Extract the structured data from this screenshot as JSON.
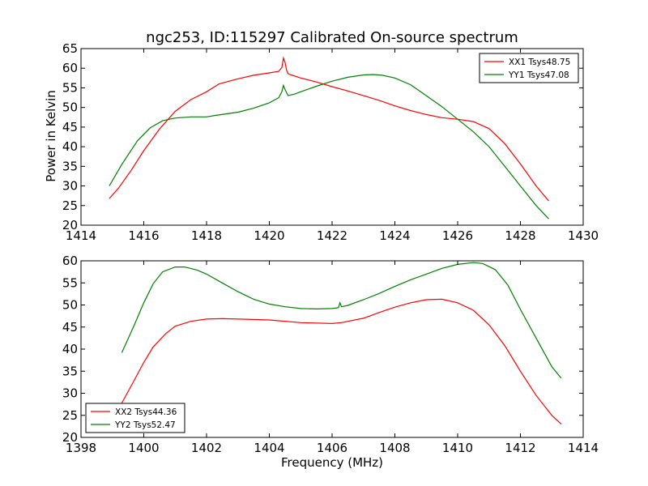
{
  "figure": {
    "title": "ngc253, ID:115297 Calibrated On-source spectrum",
    "ylabel": "Power in Kelvin",
    "xlabel": "Frequency (MHz)"
  },
  "colors": {
    "red": "#ff0000",
    "green": "#008000"
  },
  "chart_data": [
    {
      "type": "line",
      "xlim": [
        1414,
        1430
      ],
      "ylim": [
        20,
        65
      ],
      "xticks": [
        1414,
        1416,
        1418,
        1420,
        1422,
        1424,
        1426,
        1428,
        1430
      ],
      "yticks": [
        20,
        25,
        30,
        35,
        40,
        45,
        50,
        55,
        60,
        65
      ],
      "legend_position": "top-right",
      "series": [
        {
          "name": "XX1 Tsys48.75",
          "color": "#ff0000",
          "x": [
            1414.9,
            1415.2,
            1415.6,
            1416.0,
            1416.5,
            1417.0,
            1417.5,
            1418.0,
            1418.2,
            1418.4,
            1419.0,
            1419.5,
            1420.0,
            1420.3,
            1420.4,
            1420.45,
            1420.5,
            1420.55,
            1420.6,
            1420.7,
            1421.0,
            1421.5,
            1422.0,
            1422.5,
            1423.0,
            1423.5,
            1424.0,
            1424.5,
            1425.0,
            1425.5,
            1426.0,
            1426.5,
            1427.0,
            1427.5,
            1428.0,
            1428.5,
            1428.9
          ],
          "y": [
            26.8,
            29.5,
            34.0,
            39.0,
            44.5,
            49.0,
            52.0,
            54.0,
            55.0,
            56.0,
            57.3,
            58.2,
            58.8,
            59.2,
            60.2,
            62.6,
            61.5,
            59.5,
            58.6,
            58.3,
            57.5,
            56.5,
            55.3,
            54.2,
            53.0,
            51.8,
            50.4,
            49.2,
            48.2,
            47.4,
            47.0,
            46.4,
            44.6,
            40.8,
            35.6,
            30.0,
            26.2
          ]
        },
        {
          "name": "YY1 Tsys47.08",
          "color": "#008000",
          "x": [
            1414.9,
            1415.3,
            1415.8,
            1416.2,
            1416.6,
            1417.0,
            1417.5,
            1418.0,
            1418.3,
            1419.0,
            1419.5,
            1420.0,
            1420.3,
            1420.4,
            1420.45,
            1420.5,
            1420.6,
            1420.8,
            1421.0,
            1421.5,
            1422.0,
            1422.5,
            1423.0,
            1423.3,
            1423.6,
            1424.0,
            1424.5,
            1425.0,
            1425.5,
            1426.0,
            1426.5,
            1427.0,
            1427.5,
            1428.0,
            1428.5,
            1428.9
          ],
          "y": [
            30.0,
            35.5,
            41.5,
            44.8,
            46.6,
            47.3,
            47.6,
            47.6,
            48.0,
            48.8,
            49.8,
            51.2,
            52.5,
            54.0,
            55.6,
            54.6,
            53.0,
            53.4,
            54.0,
            55.4,
            56.7,
            57.7,
            58.3,
            58.4,
            58.2,
            57.5,
            55.8,
            53.0,
            50.2,
            47.0,
            43.8,
            40.0,
            35.0,
            30.0,
            25.0,
            21.6
          ]
        }
      ]
    },
    {
      "type": "line",
      "xlim": [
        1398,
        1414
      ],
      "ylim": [
        20,
        60
      ],
      "xticks": [
        1398,
        1400,
        1402,
        1404,
        1406,
        1408,
        1410,
        1412,
        1414
      ],
      "yticks": [
        20,
        25,
        30,
        35,
        40,
        45,
        50,
        55,
        60
      ],
      "legend_position": "bottom-left",
      "series": [
        {
          "name": "XX2 Tsys44.36",
          "color": "#ff0000",
          "x": [
            1399.3,
            1399.7,
            1400.0,
            1400.3,
            1400.7,
            1401.0,
            1401.5,
            1402.0,
            1402.5,
            1403.0,
            1404.0,
            1405.0,
            1406.0,
            1406.3,
            1406.5,
            1407.0,
            1407.5,
            1408.0,
            1408.5,
            1409.0,
            1409.5,
            1410.0,
            1410.5,
            1411.0,
            1411.5,
            1412.0,
            1412.5,
            1413.0,
            1413.3
          ],
          "y": [
            27.8,
            33.0,
            37.0,
            40.5,
            43.5,
            45.2,
            46.3,
            46.8,
            46.9,
            46.8,
            46.6,
            46.0,
            45.8,
            46.0,
            46.3,
            47.0,
            48.3,
            49.5,
            50.5,
            51.2,
            51.3,
            50.5,
            48.8,
            45.5,
            40.8,
            35.0,
            29.5,
            25.0,
            23.0
          ]
        },
        {
          "name": "YY2 Tsys52.47",
          "color": "#008000",
          "x": [
            1399.3,
            1399.7,
            1400.0,
            1400.3,
            1400.6,
            1401.0,
            1401.3,
            1401.7,
            1402.0,
            1402.5,
            1403.0,
            1403.5,
            1404.0,
            1404.5,
            1405.0,
            1405.5,
            1406.0,
            1406.2,
            1406.25,
            1406.3,
            1406.5,
            1407.0,
            1407.5,
            1408.0,
            1408.5,
            1409.0,
            1409.5,
            1410.0,
            1410.5,
            1410.8,
            1411.2,
            1411.6,
            1412.0,
            1412.5,
            1413.0,
            1413.3
          ],
          "y": [
            39.2,
            45.5,
            50.5,
            54.8,
            57.5,
            58.6,
            58.6,
            57.9,
            57.0,
            55.0,
            53.0,
            51.3,
            50.2,
            49.6,
            49.2,
            49.1,
            49.2,
            49.4,
            50.5,
            49.6,
            49.9,
            51.2,
            52.6,
            54.2,
            55.7,
            57.0,
            58.3,
            59.2,
            59.6,
            59.4,
            58.0,
            54.5,
            49.0,
            42.5,
            36.0,
            33.4
          ]
        }
      ]
    }
  ]
}
